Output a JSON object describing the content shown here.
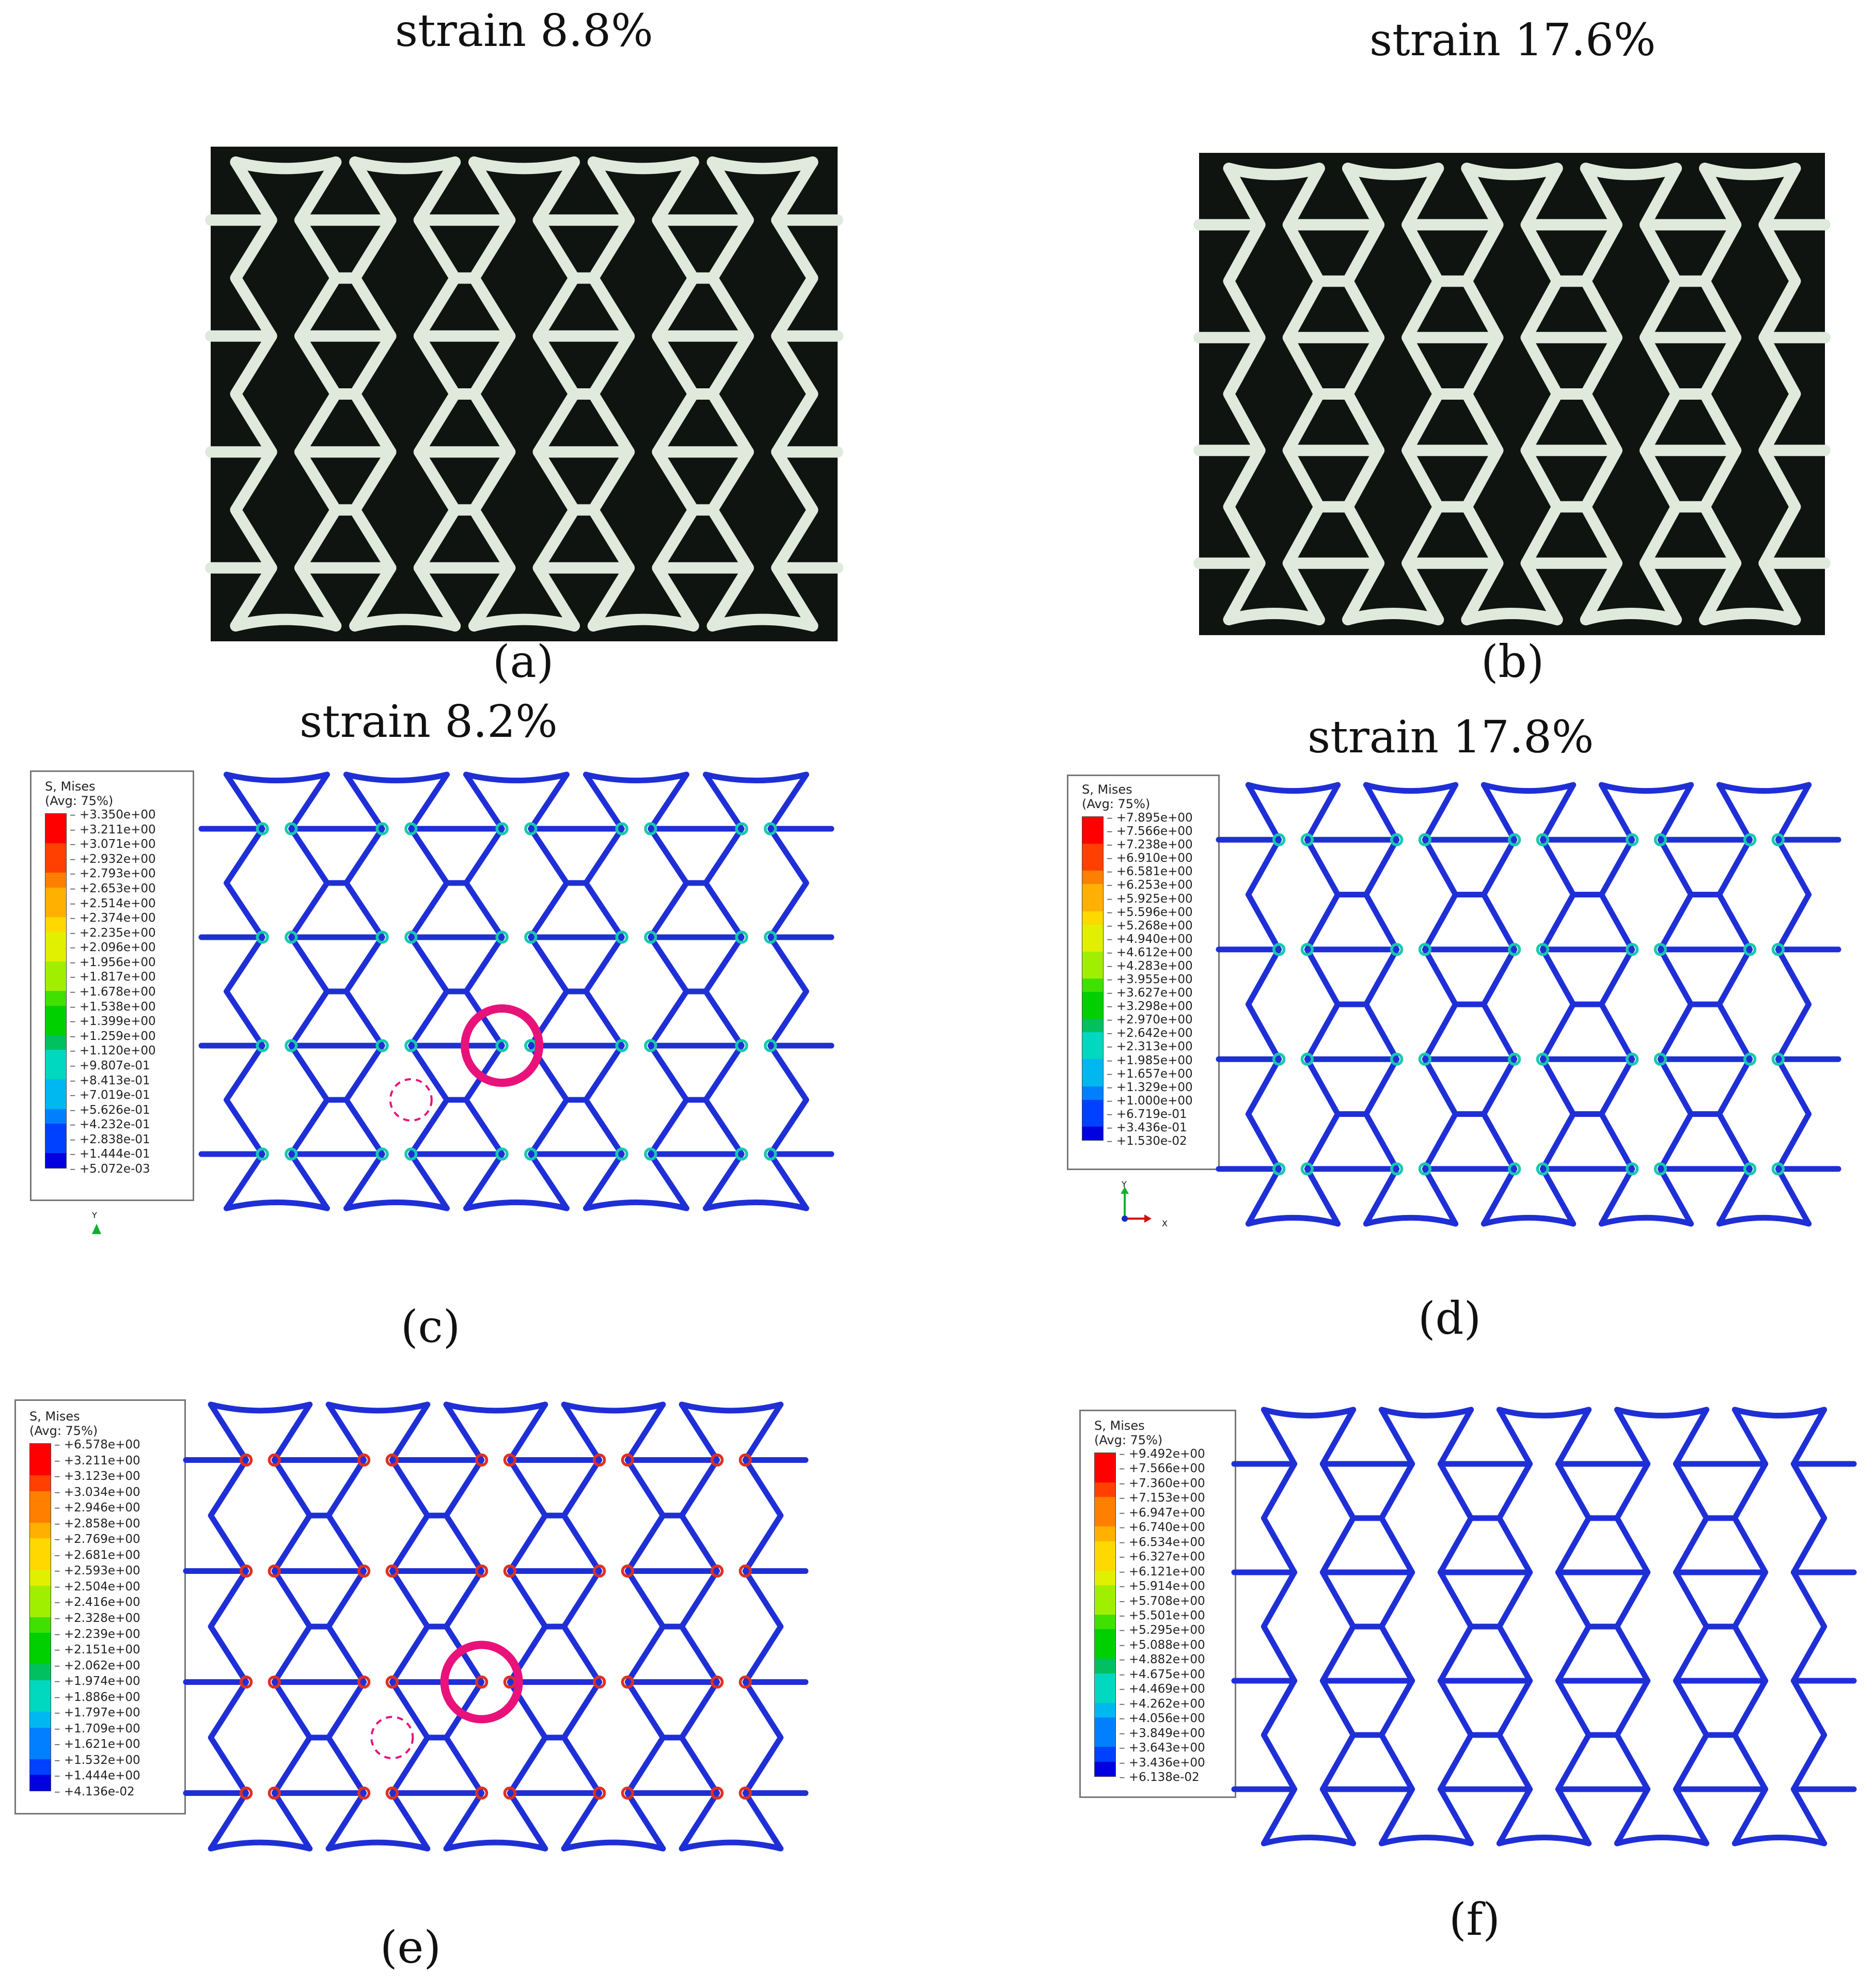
{
  "figure": {
    "a": {
      "title": "strain 8.8%",
      "label": "(a)"
    },
    "b": {
      "title": "strain 17.6%",
      "label": "(b)"
    },
    "c": {
      "title": "strain 8.2%",
      "label": "(c)",
      "legend_title": "S, Mises",
      "legend_subtitle": "(Avg: 75%)",
      "values": [
        "+3.350e+00",
        "+3.211e+00",
        "+3.071e+00",
        "+2.932e+00",
        "+2.793e+00",
        "+2.653e+00",
        "+2.514e+00",
        "+2.374e+00",
        "+2.235e+00",
        "+2.096e+00",
        "+1.956e+00",
        "+1.817e+00",
        "+1.678e+00",
        "+1.538e+00",
        "+1.399e+00",
        "+1.259e+00",
        "+1.120e+00",
        "+9.807e-01",
        "+8.413e-01",
        "+7.019e-01",
        "+5.626e-01",
        "+4.232e-01",
        "+2.838e-01",
        "+1.444e-01",
        "+5.072e-03"
      ],
      "axis_y": "Y"
    },
    "d": {
      "title": "strain 17.8%",
      "label": "(d)",
      "legend_title": "S, Mises",
      "legend_subtitle": "(Avg: 75%)",
      "values": [
        "+7.895e+00",
        "+7.566e+00",
        "+7.238e+00",
        "+6.910e+00",
        "+6.581e+00",
        "+6.253e+00",
        "+5.925e+00",
        "+5.596e+00",
        "+5.268e+00",
        "+4.940e+00",
        "+4.612e+00",
        "+4.283e+00",
        "+3.955e+00",
        "+3.627e+00",
        "+3.298e+00",
        "+2.970e+00",
        "+2.642e+00",
        "+2.313e+00",
        "+1.985e+00",
        "+1.657e+00",
        "+1.329e+00",
        "+1.000e+00",
        "+6.719e-01",
        "+3.436e-01",
        "+1.530e-02"
      ],
      "axis_y": "Y",
      "axis_x": "X"
    },
    "e": {
      "label": "(e)",
      "legend_title": "S, Mises",
      "legend_subtitle": "(Avg: 75%)",
      "values": [
        "+6.578e+00",
        "+3.211e+00",
        "+3.123e+00",
        "+3.034e+00",
        "+2.946e+00",
        "+2.858e+00",
        "+2.769e+00",
        "+2.681e+00",
        "+2.593e+00",
        "+2.504e+00",
        "+2.416e+00",
        "+2.328e+00",
        "+2.239e+00",
        "+2.151e+00",
        "+2.062e+00",
        "+1.974e+00",
        "+1.886e+00",
        "+1.797e+00",
        "+1.709e+00",
        "+1.621e+00",
        "+1.532e+00",
        "+1.444e+00",
        "+4.136e-02"
      ]
    },
    "f": {
      "label": "(f)",
      "legend_title": "S, Mises",
      "legend_subtitle": "(Avg: 75%)",
      "values": [
        "+9.492e+00",
        "+7.566e+00",
        "+7.360e+00",
        "+7.153e+00",
        "+6.947e+00",
        "+6.740e+00",
        "+6.534e+00",
        "+6.327e+00",
        "+6.121e+00",
        "+5.914e+00",
        "+5.708e+00",
        "+5.501e+00",
        "+5.295e+00",
        "+5.088e+00",
        "+4.882e+00",
        "+4.675e+00",
        "+4.469e+00",
        "+4.262e+00",
        "+4.056e+00",
        "+3.849e+00",
        "+3.643e+00",
        "+3.436e+00",
        "+6.138e-02"
      ]
    }
  },
  "colors": {
    "highlight": "#e8127a",
    "photo_background": "#0f1410",
    "photo_struts": "#dfeadc",
    "fem_struts": "#1f2fd6",
    "contour_scale": [
      "#ff0000",
      "#ff4000",
      "#ff8000",
      "#ffb000",
      "#ffd800",
      "#e0f000",
      "#a0ef00",
      "#40e000",
      "#00d000",
      "#00c060",
      "#00d8c0",
      "#00b8f0",
      "#0080ff",
      "#0040ff",
      "#0000e0"
    ]
  }
}
